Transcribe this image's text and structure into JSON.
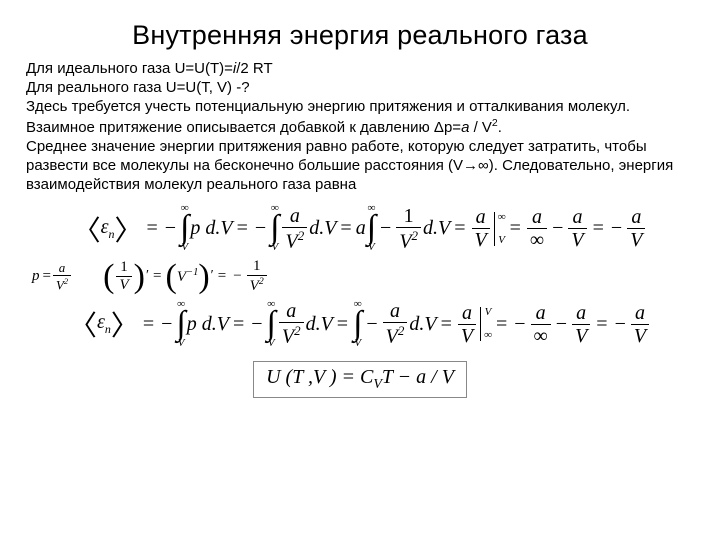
{
  "title": "Внутренняя энергия реального газа",
  "body": {
    "l1a": "Для идеального газа U=U(T)=",
    "l1i": "i",
    "l1b": "/2 RT",
    "l2": "Для реального газа U=U(T, V) -?",
    "l3": "Здесь требуется учесть потенциальную энергию притяжения и отталкивания молекул.",
    "l4a": "Взаимное притяжение описывается добавкой к давлению Δp=",
    "l4i": "a ",
    "l4b": "/ V",
    "l4sup": "2",
    "l4c": ".",
    "l5": "Среднее значение энергии притяжения равно работе, которую следует затратить, чтобы развести все молекулы на бесконечно большие расстояния (V→∞). Следовательно, энергия взаимодействия молекул реального газа равна"
  },
  "sym": {
    "epsn": "ε",
    "subn": "n",
    "inf": "∞",
    "V": "V",
    "a": "a",
    "V2": "V",
    "one": "1",
    "p": "p",
    "dV": "d.V",
    "Vm1": "V",
    "m1": "−1"
  },
  "boxed": {
    "text": "U (T ,V ) = C",
    "sub": "V",
    "text2": "T − a / V"
  },
  "colors": {
    "bg": "#ffffff",
    "fg": "#000000",
    "box": "#888888"
  },
  "fonts": {
    "title_size": 27,
    "body_size": 15,
    "formula_size": 20
  }
}
